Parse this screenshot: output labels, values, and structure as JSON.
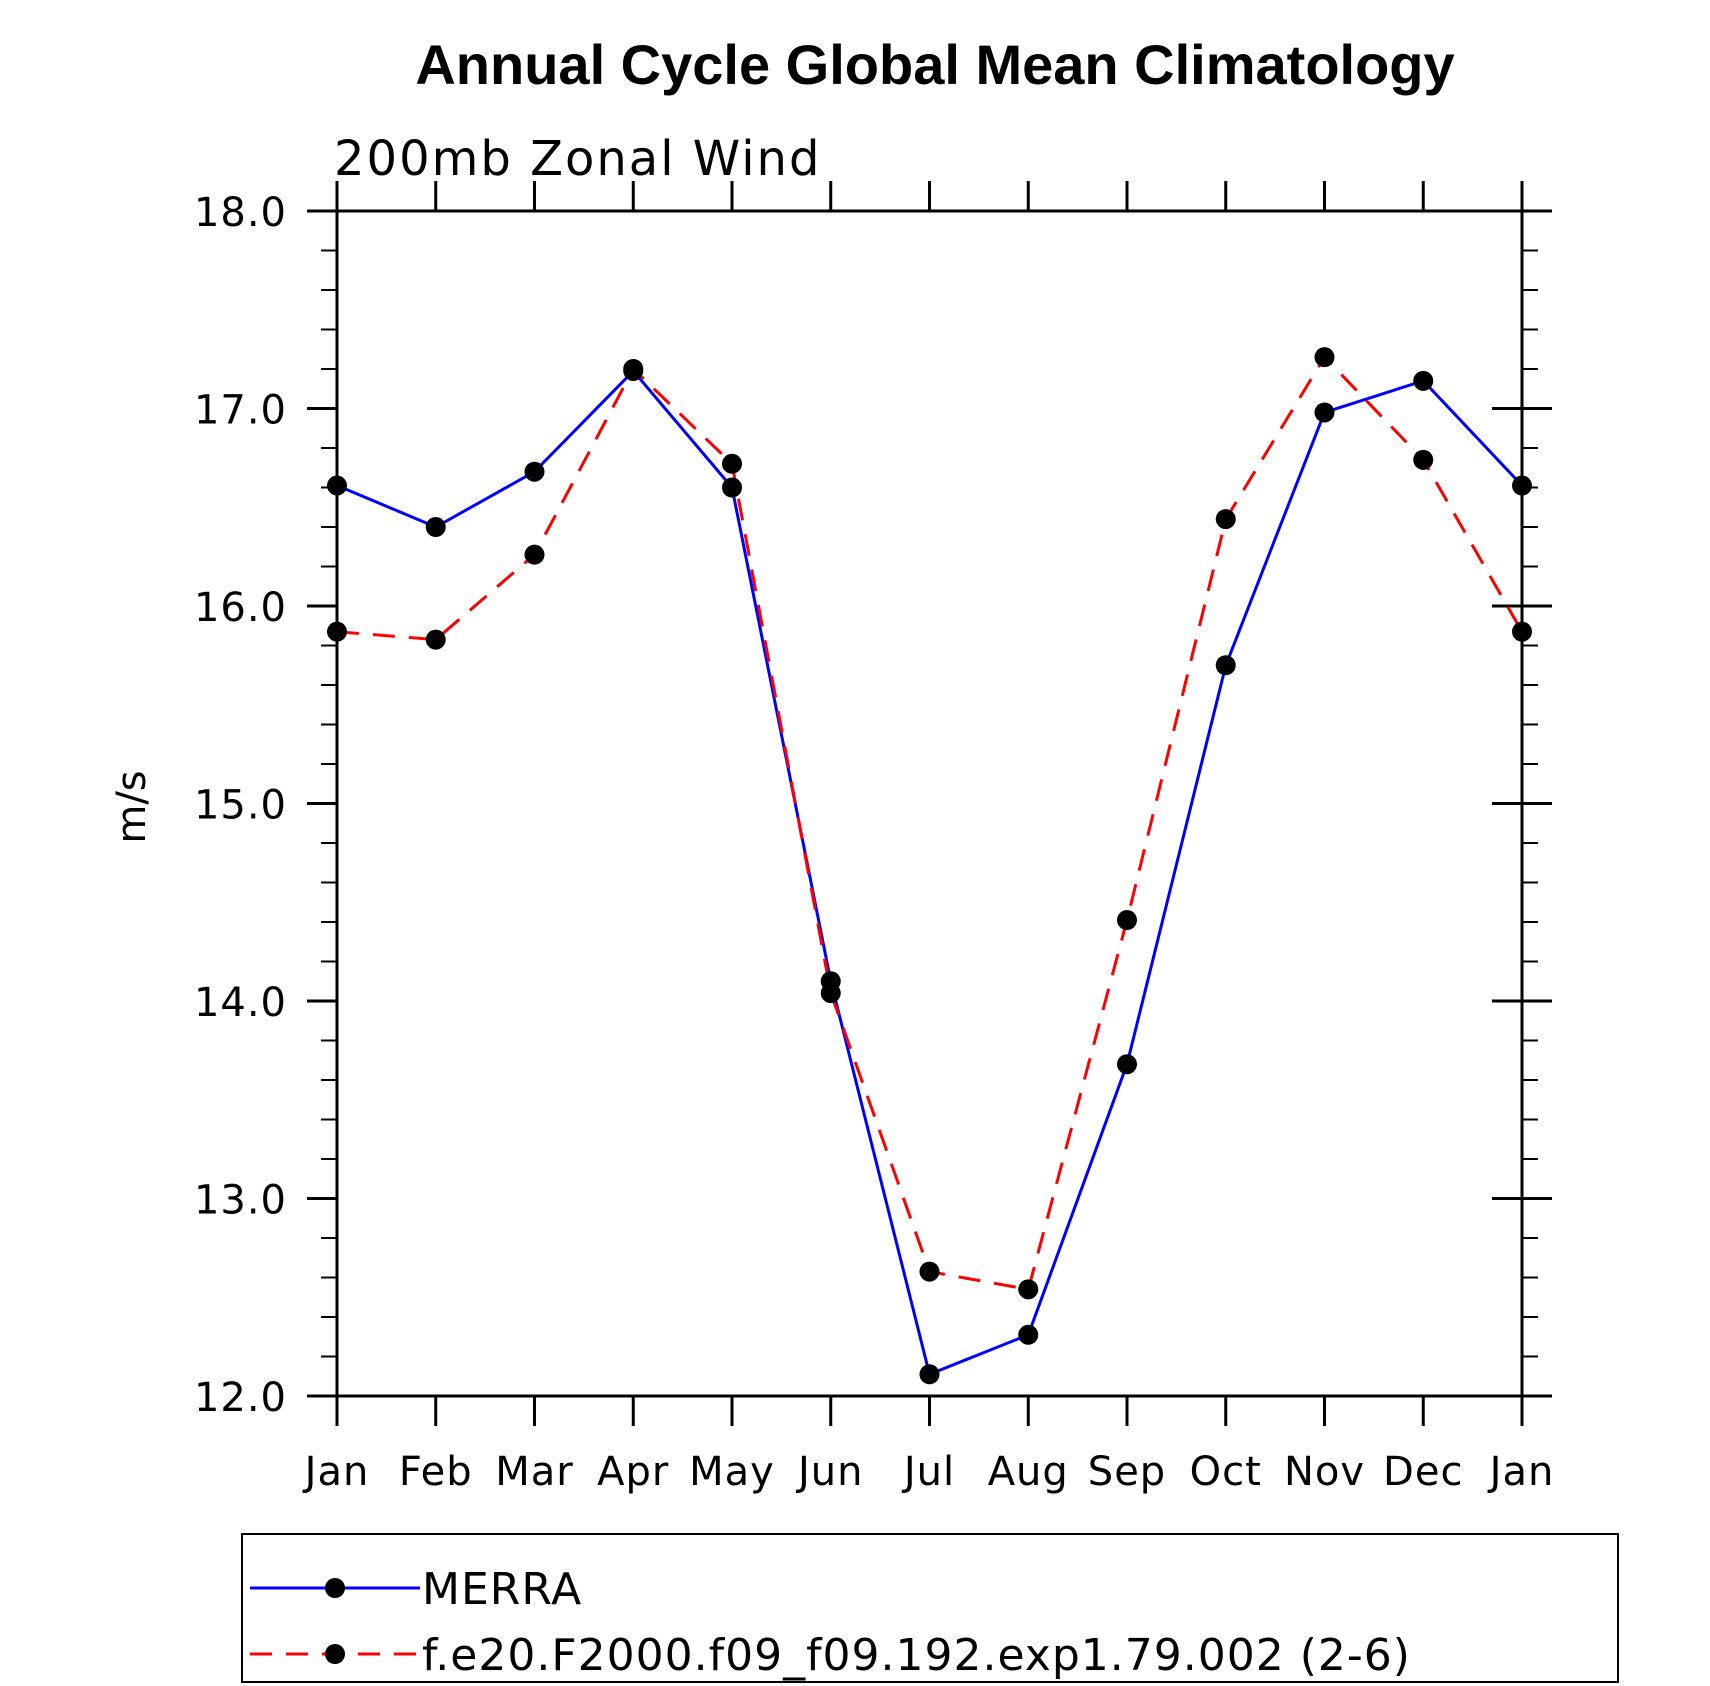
{
  "chart_data": {
    "type": "line",
    "title": "Annual Cycle Global Mean Climatology",
    "subtitle": "200mb Zonal Wind",
    "xlabel": "",
    "ylabel": "m/s",
    "categories": [
      "Jan",
      "Feb",
      "Mar",
      "Apr",
      "May",
      "Jun",
      "Jul",
      "Aug",
      "Sep",
      "Oct",
      "Nov",
      "Dec",
      "Jan"
    ],
    "ylim": [
      12.0,
      18.0
    ],
    "yticks": [
      "12.0",
      "13.0",
      "14.0",
      "15.0",
      "16.0",
      "17.0",
      "18.0"
    ],
    "grid": false,
    "legend_position": "bottom",
    "series": [
      {
        "name": "MERRA",
        "color": "#0000ff",
        "dash": "solid",
        "values": [
          16.61,
          16.4,
          16.68,
          17.19,
          16.6,
          14.1,
          12.11,
          12.31,
          13.68,
          15.7,
          16.98,
          17.14,
          16.61
        ]
      },
      {
        "name": "f.e20.F2000.f09_f09.192.exp1.79.002 (2-6)",
        "color": "#ff0000",
        "dash": "dashed",
        "values": [
          15.87,
          15.83,
          16.26,
          17.2,
          16.72,
          14.04,
          12.63,
          12.54,
          14.41,
          16.44,
          17.26,
          16.74,
          15.87
        ]
      }
    ]
  }
}
